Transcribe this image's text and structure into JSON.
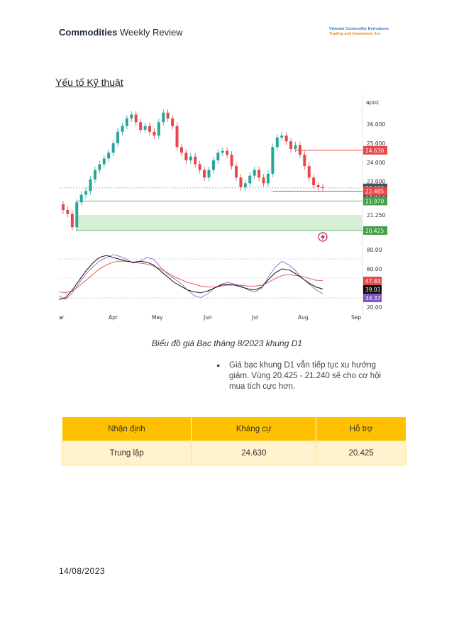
{
  "header": {
    "title_bold": "Commodities",
    "title_rest": " Weekly Review",
    "brand_line1": "Vietnam Commodity Derivatives",
    "brand_line2": "Trading and Investment Jsc"
  },
  "section": {
    "title": "Yếu tố Kỹ thuật"
  },
  "chart_data": {
    "type": "candlestick",
    "instrument_label": "apoz",
    "x_ticks": [
      "ar",
      "Apr",
      "May",
      "Jun",
      "Jul",
      "Aug",
      "Sep"
    ],
    "price_ticks": [
      "26.000",
      "25.000",
      "24.000",
      "23.000",
      "21.250"
    ],
    "indicator_ticks": [
      "80.00",
      "60.00",
      "20.00"
    ],
    "price_tags": [
      {
        "label": "24.630",
        "value": 24.63,
        "color": "#e5474b"
      },
      {
        "label": "22.660",
        "value": 22.66,
        "color": "#4a4f5a"
      },
      {
        "label": "19:05:21",
        "value": 22.52,
        "color": "#4a4f5a"
      },
      {
        "label": "22.485",
        "value": 22.485,
        "color": "#e5474b"
      },
      {
        "label": "21.970",
        "value": 21.97,
        "color": "#43a047"
      },
      {
        "label": "20.425",
        "value": 20.425,
        "color": "#43a047"
      }
    ],
    "indicator_tags": [
      {
        "label": "47.83",
        "value": 47.83,
        "color": "#e5474b"
      },
      {
        "label": "39.01",
        "value": 39.01,
        "color": "#111111"
      },
      {
        "label": "34.37",
        "value": 34.37,
        "color": "#7e57c2"
      }
    ],
    "support_zone": [
      20.425,
      21.24
    ],
    "resistance_level": 24.63,
    "close_series": [
      21.5,
      21.3,
      20.6,
      21.9,
      22.3,
      22.5,
      23.1,
      23.6,
      23.9,
      24.2,
      24.5,
      25.0,
      25.6,
      25.9,
      26.3,
      26.5,
      26.1,
      25.7,
      25.9,
      25.6,
      25.4,
      26.1,
      26.6,
      26.3,
      25.9,
      24.8,
      24.5,
      24.1,
      24.3,
      23.9,
      23.6,
      23.2,
      23.6,
      24.1,
      24.5,
      24.6,
      24.4,
      23.8,
      23.2,
      22.7,
      22.9,
      23.3,
      23.6,
      23.2,
      22.9,
      23.4,
      24.8,
      25.3,
      25.4,
      25.1,
      24.7,
      24.9,
      24.4,
      23.8,
      23.2,
      22.8,
      22.7,
      22.66
    ],
    "indicator_series": {
      "purple": [
        32,
        28,
        35,
        45,
        55,
        62,
        68,
        72,
        75,
        73,
        70,
        66,
        68,
        72,
        70,
        62,
        55,
        50,
        45,
        38,
        32,
        30,
        34,
        40,
        44,
        46,
        44,
        42,
        38,
        36,
        40,
        52,
        62,
        68,
        64,
        58,
        50,
        44,
        38,
        34
      ],
      "black": [
        28,
        30,
        38,
        48,
        58,
        66,
        72,
        74,
        72,
        70,
        68,
        67,
        68,
        67,
        64,
        58,
        52,
        46,
        42,
        38,
        36,
        35,
        37,
        40,
        43,
        44,
        43,
        41,
        39,
        38,
        41,
        49,
        56,
        60,
        59,
        55,
        50,
        45,
        41,
        39
      ],
      "red": [
        36,
        35,
        37,
        42,
        48,
        54,
        60,
        64,
        67,
        68,
        68,
        67,
        66,
        65,
        63,
        60,
        56,
        52,
        49,
        46,
        44,
        42,
        41,
        41,
        42,
        43,
        43,
        43,
        42,
        42,
        43,
        46,
        50,
        53,
        54,
        53,
        52,
        50,
        48,
        47.83
      ]
    }
  },
  "caption": "Biểu đồ giá Bạc tháng 8/2023  khung D1",
  "bullet": {
    "marker": "●",
    "text": "Giá bạc khung D1 vẫn tiếp tục xu hướng giảm. Vùng 20.425 - 21.240 sẽ cho cơ hội mua tích cực hơn."
  },
  "table": {
    "headers": [
      "Nhận định",
      "Kháng cự",
      "Hỗ trợ"
    ],
    "row": [
      "Trung lập",
      "24.630",
      "20.425"
    ]
  },
  "footer": {
    "date": "14/08/2023"
  }
}
